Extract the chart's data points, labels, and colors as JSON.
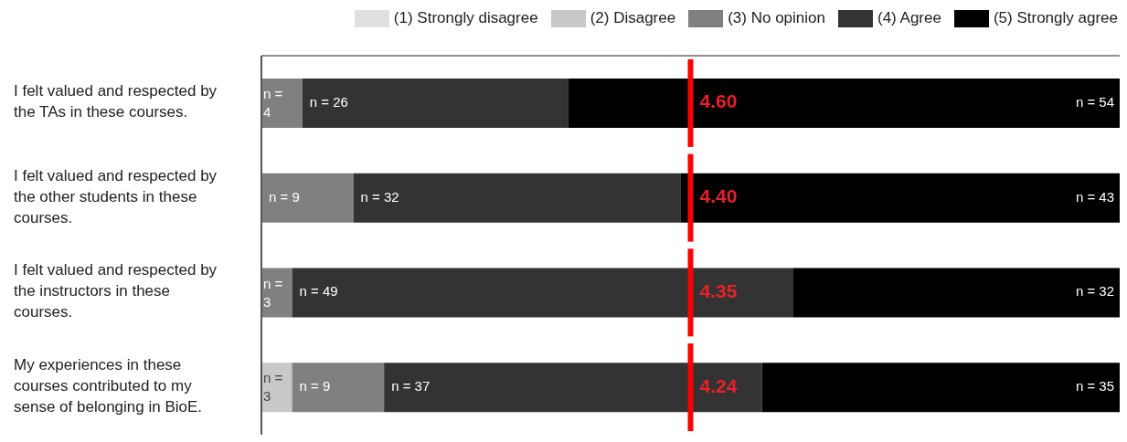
{
  "chart_data": {
    "type": "bar",
    "orientation": "horizontal",
    "stacked": true,
    "relative": false,
    "categories": [
      "I felt valued and respected by the TAs in these courses.",
      "I felt valued and respected by the other students in these courses.",
      "I felt valued and respected by the instructors in these courses.",
      "My experiences in these courses contributed to my sense of belonging in BioE."
    ],
    "tick_labels": "y",
    "series": [
      {
        "name": "(1) Strongly disagree",
        "color": "#e0e0e0",
        "values": [
          null,
          null,
          null,
          null
        ],
        "value_labels": [
          null,
          null,
          null,
          null
        ]
      },
      {
        "name": "(2) Disagree",
        "color": "#c8c8c8",
        "values": [
          null,
          null,
          null,
          3
        ],
        "value_labels": [
          null,
          null,
          null,
          "n = 3"
        ]
      },
      {
        "name": "(3) No opinion",
        "color": "#808080",
        "values": [
          4,
          9,
          3,
          9
        ],
        "value_labels": [
          "n = 4",
          "n = 9",
          "n = 3",
          "n = 9"
        ]
      },
      {
        "name": "(4) Agree",
        "color": "#333333",
        "values": [
          26,
          32,
          49,
          37
        ],
        "value_labels": [
          "n = 26",
          "n = 32",
          "n = 49",
          "n = 37"
        ]
      },
      {
        "name": "(5) Strongly agree",
        "color": "#000000",
        "values": [
          54,
          43,
          32,
          35
        ],
        "value_labels": [
          "n = 54",
          "n = 43",
          "n = 32",
          "n = 35"
        ]
      }
    ],
    "annotations": [
      "4.60",
      "4.40",
      "4.35",
      "4.24"
    ],
    "legend": "top right"
  }
}
